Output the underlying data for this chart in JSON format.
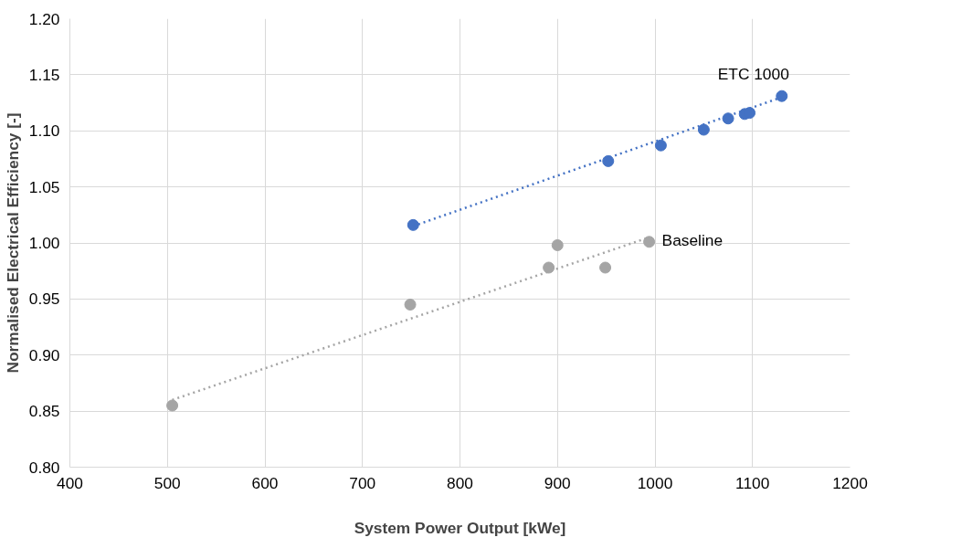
{
  "chart_data": {
    "type": "scatter",
    "xlabel": "System Power Output [kWe]",
    "ylabel": "Normalised Electrical Efficiency [-]",
    "xlim": [
      400,
      1200
    ],
    "xticks": [
      400,
      500,
      600,
      700,
      800,
      900,
      1000,
      1100,
      1200
    ],
    "ylim": [
      0.8,
      1.2
    ],
    "yticks": [
      {
        "value": 0.8,
        "label": "0.80"
      },
      {
        "value": 0.85,
        "label": "0.85"
      },
      {
        "value": 0.9,
        "label": "0.90"
      },
      {
        "value": 0.95,
        "label": "0.95"
      },
      {
        "value": 1.0,
        "label": "1.00"
      },
      {
        "value": 1.05,
        "label": "1.05"
      },
      {
        "value": 1.1,
        "label": "1.10"
      },
      {
        "value": 1.15,
        "label": "1.15"
      },
      {
        "value": 1.2,
        "label": "1.20"
      }
    ],
    "grid": true,
    "series": [
      {
        "name": "ETC 1000",
        "marker": "circle",
        "color": "#4472c4",
        "x": [
          752,
          952,
          1006,
          1050,
          1075,
          1092,
          1097,
          1130
        ],
        "values": [
          1.016,
          1.073,
          1.087,
          1.101,
          1.111,
          1.115,
          1.116,
          1.131
        ]
      },
      {
        "name": "Baseline",
        "marker": "circle",
        "color": "#a5a5a5",
        "x": [
          505,
          749,
          891,
          900,
          949,
          994
        ],
        "values": [
          0.855,
          0.945,
          0.978,
          0.998,
          0.978,
          1.001
        ]
      },
      {
        "type": "line",
        "line_style": "dotted",
        "color": "#4472c4",
        "x": [
          752,
          1130
        ],
        "values": [
          1.015,
          1.13
        ]
      },
      {
        "type": "line",
        "line_style": "dotted",
        "color": "#a5a5a5",
        "x": [
          505,
          994
        ],
        "values": [
          0.86,
          1.005
        ]
      }
    ]
  }
}
